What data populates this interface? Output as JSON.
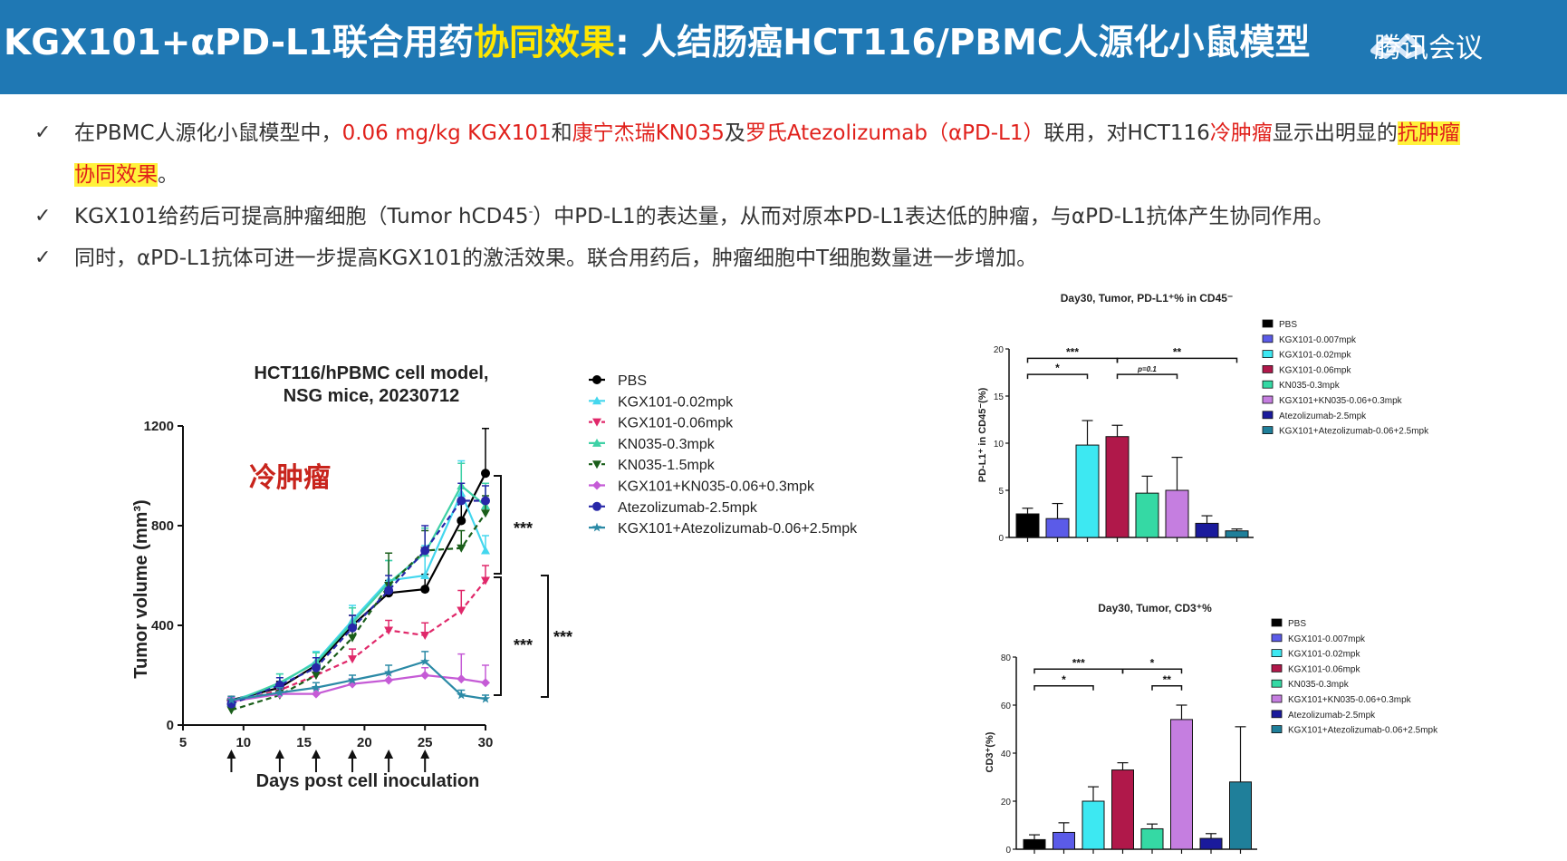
{
  "header": {
    "title_part1": "KGX101+αPD-L1联合用药",
    "title_highlight": "协同效果",
    "title_part2": ": 人结肠癌HCT116/PBMC人源化小鼠模型",
    "watermark": "腾讯会议",
    "bg_color": "#1f78b4",
    "highlight_color": "#ffe600"
  },
  "bullets": [
    {
      "check": "✓",
      "b1_a": "在PBMC人源化小鼠模型中，",
      "b1_b": "0.06 mg/kg KGX101",
      "b1_c": "和",
      "b1_d": "康宁杰瑞KN035",
      "b1_e": "及",
      "b1_f": "罗氏Atezolizumab（αPD-L1）",
      "b1_g": "联用，对HCT116",
      "b1_h": "冷肿瘤",
      "b1_i": "显示出明显的",
      "b1_j": "抗肿瘤",
      "b1_k": "协同效果",
      "b1_l": "。"
    },
    {
      "check": "✓",
      "b2_a": "KGX101给药后可提高肿瘤细胞（Tumor hCD45",
      "b2_sup": "-",
      "b2_b": "）中PD-L1的表达量，从而对原本PD-L1表达低的肿瘤，与αPD-L1抗体产生协同作用。"
    },
    {
      "check": "✓",
      "b3": "同时，αPD-L1抗体可进一步提高KGX101的激活效果。联合用药后，肿瘤细胞中T细胞数量进一步增加。"
    }
  ],
  "chart_data": [
    {
      "type": "line",
      "title_line1": "HCT116/hPBMC cell model,",
      "title_line2": "NSG mice, 20230712",
      "xlabel": "Days post cell inoculation",
      "ylabel": "Tumor volume (mm³)",
      "xlim": [
        5,
        30
      ],
      "ylim": [
        0,
        1200
      ],
      "xticks": [
        "5",
        "10",
        "15",
        "20",
        "25",
        "30"
      ],
      "yticks": [
        "0",
        "400",
        "800",
        "1200"
      ],
      "annotation": "冷肿瘤",
      "dosing_days": [
        9,
        13,
        16,
        19,
        22,
        25
      ],
      "x": [
        9,
        13,
        16,
        19,
        22,
        25,
        28,
        30
      ],
      "significance": [
        "***",
        "***",
        "***"
      ],
      "legend_position": "right",
      "series": [
        {
          "name": "PBS",
          "color": "#000000",
          "marker": "circle",
          "dashed": false,
          "values": [
            100,
            150,
            240,
            400,
            530,
            545,
            820,
            1010
          ],
          "err": [
            15,
            25,
            30,
            40,
            50,
            60,
            80,
            180
          ]
        },
        {
          "name": "KGX101-0.02mpk",
          "color": "#44d7ee",
          "marker": "triangle-up",
          "dashed": false,
          "values": [
            95,
            165,
            255,
            420,
            580,
            600,
            930,
            700
          ],
          "err": [
            15,
            40,
            40,
            60,
            80,
            120,
            130,
            60
          ]
        },
        {
          "name": "KGX101-0.06mpk",
          "color": "#e0286a",
          "marker": "triangle-down",
          "dashed": true,
          "values": [
            90,
            140,
            200,
            265,
            380,
            360,
            460,
            580
          ],
          "err": [
            10,
            20,
            30,
            40,
            40,
            50,
            80,
            60
          ]
        },
        {
          "name": "KN035-0.3mpk",
          "color": "#3fd1a6",
          "marker": "triangle-up",
          "dashed": false,
          "values": [
            90,
            170,
            250,
            410,
            570,
            690,
            960,
            880
          ],
          "err": [
            15,
            35,
            40,
            60,
            90,
            100,
            90,
            90
          ]
        },
        {
          "name": "KN035-1.5mpk",
          "color": "#1a5e1a",
          "marker": "triangle-down",
          "dashed": true,
          "values": [
            60,
            120,
            200,
            350,
            560,
            700,
            710,
            850
          ],
          "err": [
            10,
            20,
            30,
            40,
            130,
            80,
            70,
            70
          ]
        },
        {
          "name": "KGX101+KN035-0.06+0.3mpk",
          "color": "#c55bd6",
          "marker": "diamond",
          "dashed": false,
          "values": [
            95,
            125,
            125,
            165,
            180,
            200,
            185,
            170
          ],
          "err": [
            15,
            20,
            20,
            20,
            30,
            30,
            100,
            70
          ]
        },
        {
          "name": "Atezolizumab-2.5mpk",
          "color": "#2727a8",
          "marker": "circle",
          "dashed": true,
          "values": [
            85,
            160,
            230,
            390,
            540,
            700,
            900,
            900
          ],
          "err": [
            15,
            30,
            40,
            50,
            60,
            100,
            70,
            60
          ]
        },
        {
          "name": "KGX101+Atezolizumab-0.06+2.5mpk",
          "color": "#2b8aa6",
          "marker": "star",
          "dashed": false,
          "values": [
            100,
            130,
            150,
            180,
            210,
            255,
            120,
            105
          ],
          "err": [
            15,
            20,
            20,
            20,
            30,
            40,
            20,
            15
          ]
        }
      ]
    },
    {
      "type": "bar",
      "title": "Day30, Tumor, PD-L1⁺% in CD45⁻",
      "ylabel": "PD-L1⁺ in CD45⁻(%)",
      "ylim": [
        0,
        20
      ],
      "yticks": [
        "0",
        "5",
        "10",
        "15",
        "20"
      ],
      "categories": [
        "PBS",
        "KGX101-0.007mpk",
        "KGX101-0.02mpk",
        "KGX101-0.06mpk",
        "KN035-0.3mpk",
        "KGX101+KN035-0.06+0.3mpk",
        "Atezolizumab-2.5mpk",
        "KGX101+Atezolizumab-0.06+2.5mpk"
      ],
      "values": [
        2.5,
        2.0,
        9.8,
        10.7,
        4.7,
        5.0,
        1.5,
        0.7
      ],
      "err": [
        0.6,
        1.6,
        2.6,
        1.2,
        1.8,
        3.5,
        0.8,
        0.2
      ],
      "colors": [
        "#000000",
        "#5b5be8",
        "#3de8f2",
        "#b0184a",
        "#35d9a4",
        "#c57ee0",
        "#1a1a9c",
        "#1f7f9a"
      ],
      "significance": [
        "***",
        "**",
        "*",
        "p=0.1"
      ],
      "legend_position": "right"
    },
    {
      "type": "bar",
      "title": "Day30, Tumor, CD3⁺%",
      "ylabel": "CD3⁺(%)",
      "ylim": [
        0,
        80
      ],
      "yticks": [
        "0",
        "20",
        "40",
        "60",
        "80"
      ],
      "categories": [
        "PBS",
        "KGX101-0.007mpk",
        "KGX101-0.02mpk",
        "KGX101-0.06mpk",
        "KN035-0.3mpk",
        "KGX101+KN035-0.06+0.3mpk",
        "Atezolizumab-2.5mpk",
        "KGX101+Atezolizumab-0.06+2.5mpk"
      ],
      "values": [
        4,
        7,
        20,
        33,
        8.5,
        54,
        4.5,
        28
      ],
      "err": [
        2,
        4,
        6,
        3,
        2,
        6,
        2,
        23
      ],
      "colors": [
        "#000000",
        "#5b5be8",
        "#3de8f2",
        "#b0184a",
        "#35d9a4",
        "#c57ee0",
        "#1a1a9c",
        "#1f7f9a"
      ],
      "significance": [
        "***",
        "*",
        "*",
        "**"
      ],
      "legend_position": "right"
    }
  ]
}
